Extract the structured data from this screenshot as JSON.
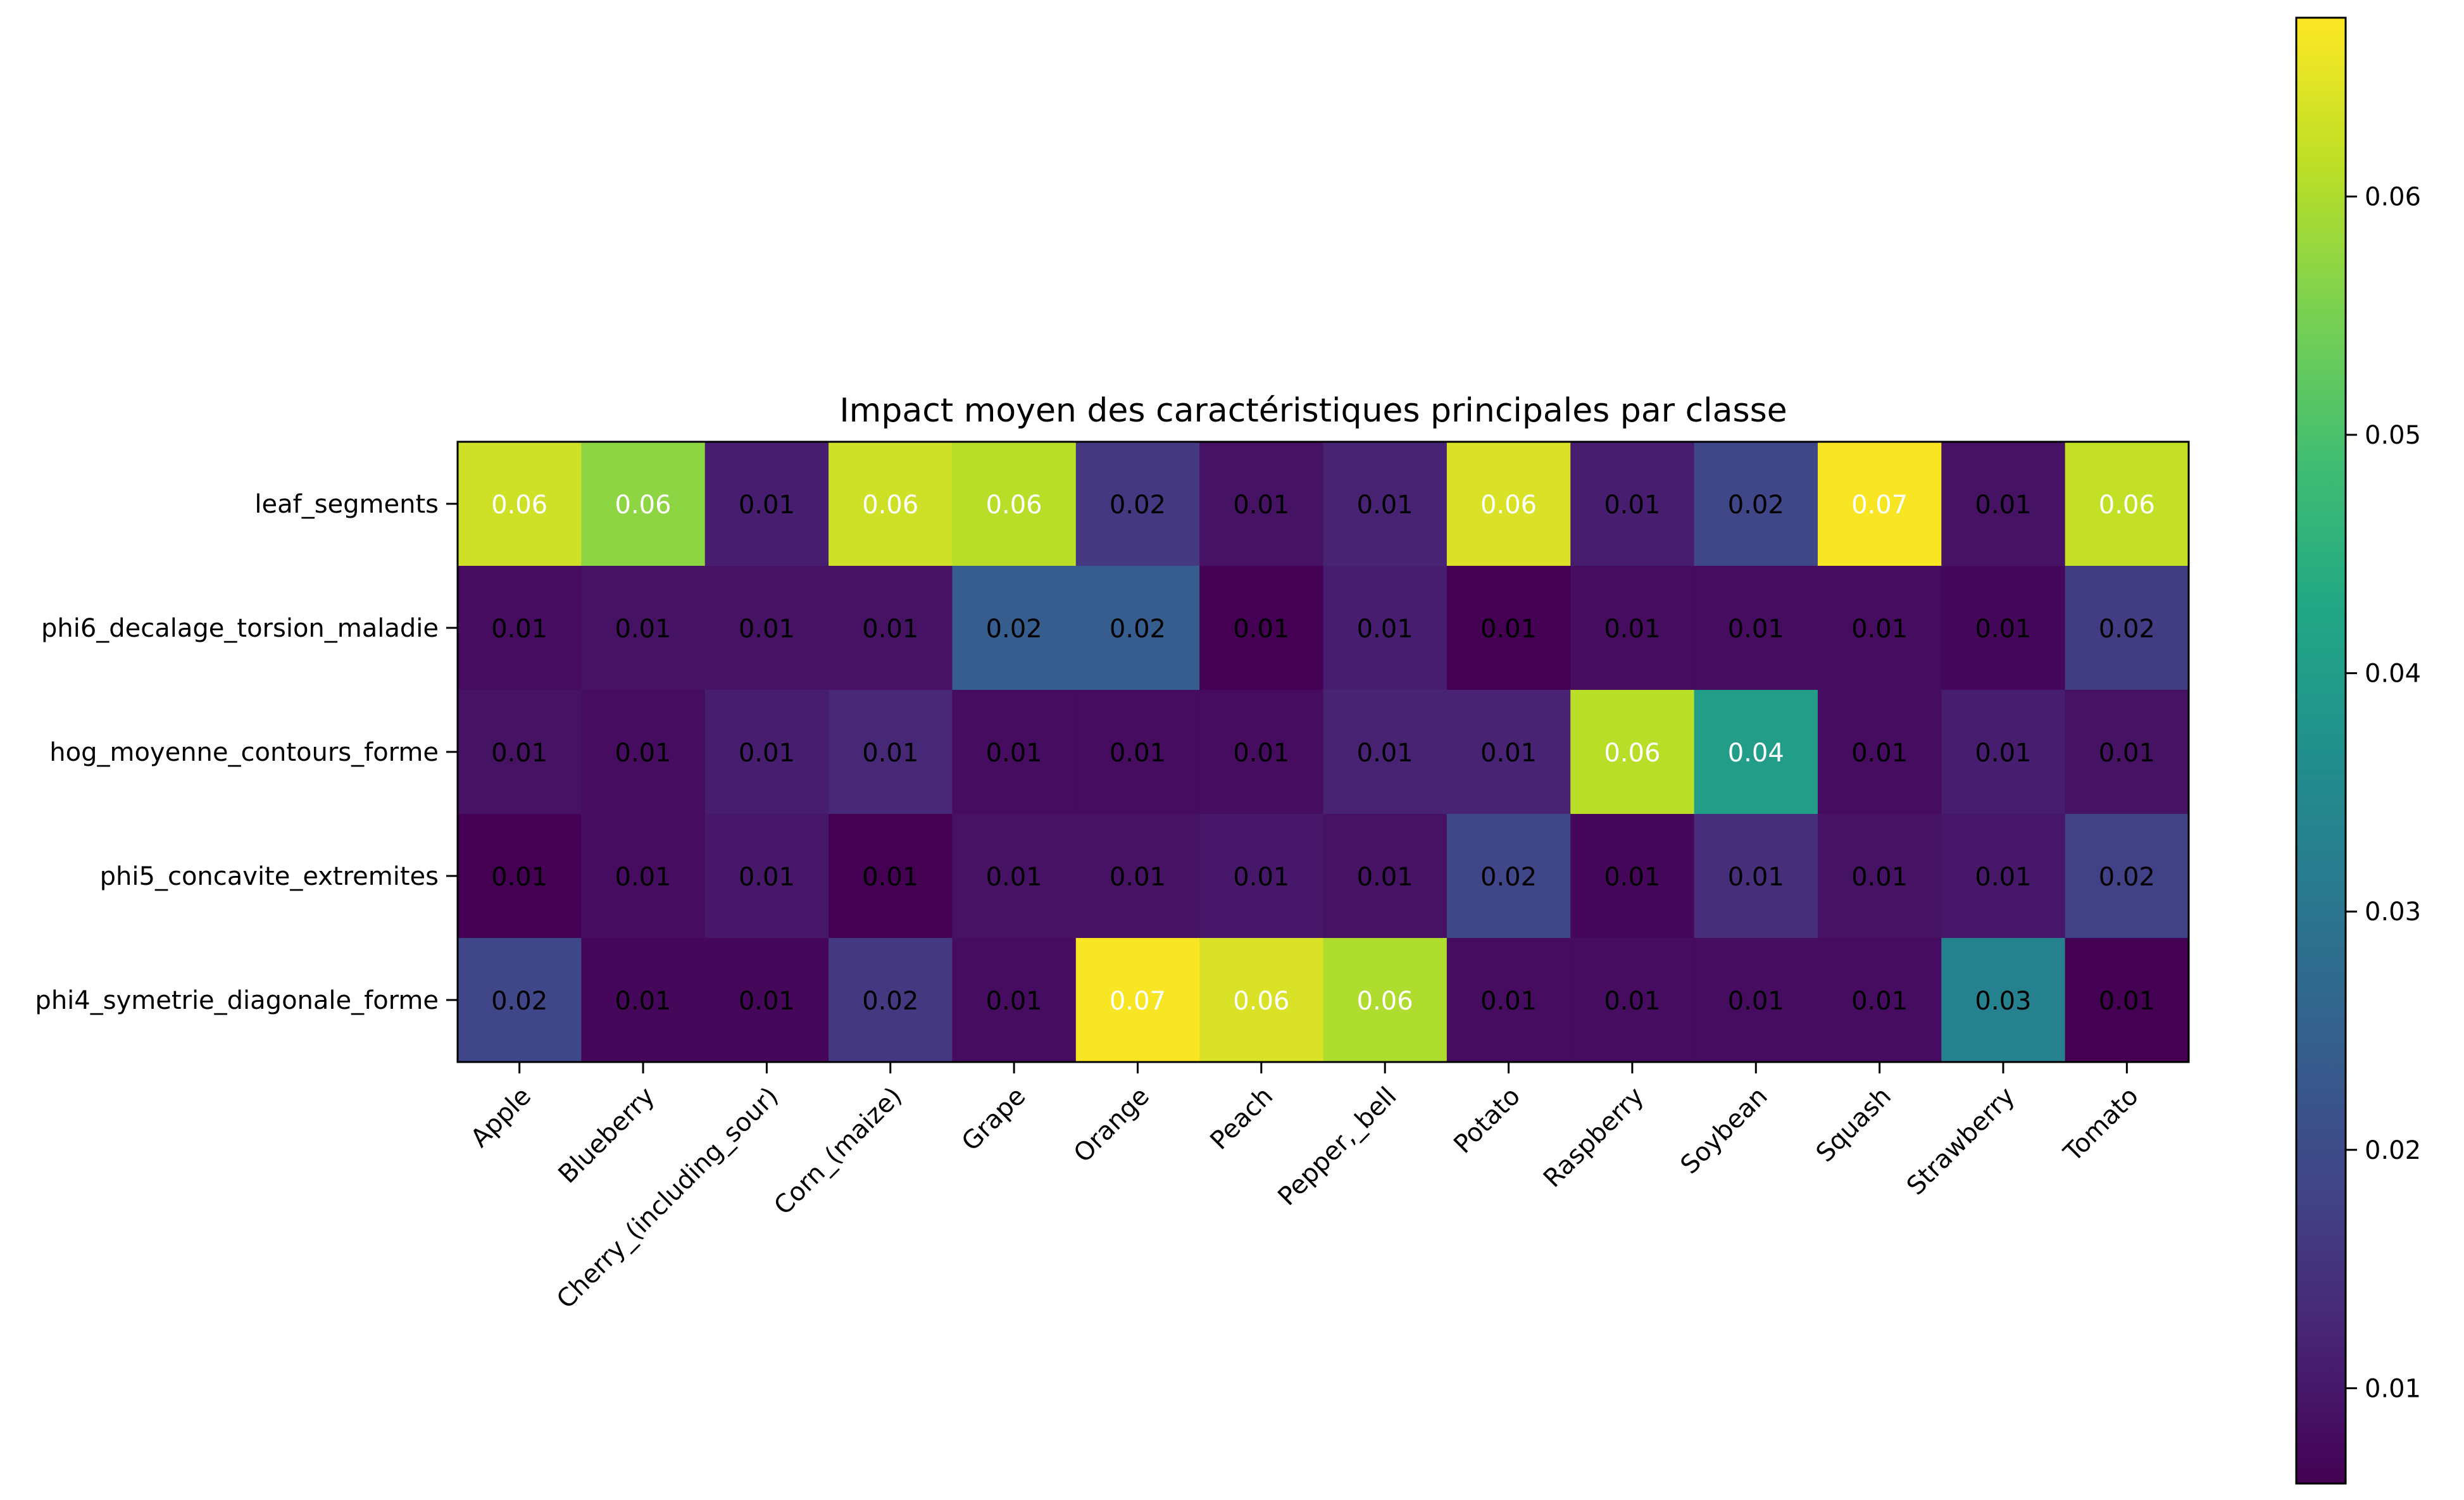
{
  "chart_data": {
    "type": "heatmap",
    "title": "Impact moyen des caractéristiques principales par classe",
    "xlabel": "",
    "ylabel": "",
    "x_categories": [
      "Apple",
      "Blueberry",
      "Cherry_(including_sour)",
      "Corn_(maize)",
      "Grape",
      "Orange",
      "Peach",
      "Pepper,_bell",
      "Potato",
      "Raspberry",
      "Soybean",
      "Squash",
      "Strawberry",
      "Tomato"
    ],
    "y_categories": [
      "leaf_segments",
      "phi6_decalage_torsion_maladie",
      "hog_moyenne_contours_forme",
      "phi5_concavite_extremites",
      "phi4_symetrie_diagonale_forme"
    ],
    "values": [
      [
        0.063,
        0.057,
        0.011,
        0.063,
        0.061,
        0.016,
        0.009,
        0.012,
        0.064,
        0.011,
        0.019,
        0.067,
        0.009,
        0.062
      ],
      [
        0.008,
        0.009,
        0.009,
        0.009,
        0.024,
        0.024,
        0.006,
        0.011,
        0.006,
        0.008,
        0.008,
        0.008,
        0.007,
        0.017
      ],
      [
        0.009,
        0.008,
        0.011,
        0.013,
        0.008,
        0.008,
        0.008,
        0.012,
        0.012,
        0.061,
        0.04,
        0.008,
        0.011,
        0.009
      ],
      [
        0.006,
        0.008,
        0.01,
        0.006,
        0.009,
        0.009,
        0.01,
        0.009,
        0.019,
        0.007,
        0.014,
        0.009,
        0.01,
        0.018
      ],
      [
        0.019,
        0.007,
        0.007,
        0.016,
        0.008,
        0.067,
        0.064,
        0.06,
        0.008,
        0.008,
        0.008,
        0.008,
        0.033,
        0.006
      ]
    ],
    "cell_labels": [
      [
        "0.06",
        "0.06",
        "0.01",
        "0.06",
        "0.06",
        "0.02",
        "0.01",
        "0.01",
        "0.06",
        "0.01",
        "0.02",
        "0.07",
        "0.01",
        "0.06"
      ],
      [
        "0.01",
        "0.01",
        "0.01",
        "0.01",
        "0.02",
        "0.02",
        "0.01",
        "0.01",
        "0.01",
        "0.01",
        "0.01",
        "0.01",
        "0.01",
        "0.02"
      ],
      [
        "0.01",
        "0.01",
        "0.01",
        "0.01",
        "0.01",
        "0.01",
        "0.01",
        "0.01",
        "0.01",
        "0.06",
        "0.04",
        "0.01",
        "0.01",
        "0.01"
      ],
      [
        "0.01",
        "0.01",
        "0.01",
        "0.01",
        "0.01",
        "0.01",
        "0.01",
        "0.01",
        "0.02",
        "0.01",
        "0.01",
        "0.01",
        "0.01",
        "0.02"
      ],
      [
        "0.02",
        "0.01",
        "0.01",
        "0.02",
        "0.01",
        "0.07",
        "0.06",
        "0.06",
        "0.01",
        "0.01",
        "0.01",
        "0.01",
        "0.03",
        "0.01"
      ]
    ],
    "colormap": "viridis",
    "color_range": [
      0.006,
      0.0675
    ],
    "colorbar_ticks": [
      "0.01",
      "0.02",
      "0.03",
      "0.04",
      "0.05",
      "0.06"
    ],
    "colorbar_tick_values": [
      0.01,
      0.02,
      0.03,
      0.04,
      0.05,
      0.06
    ],
    "label_text_colors": {
      "light": "#ffffff",
      "dark": "#000000"
    },
    "grid": false
  }
}
